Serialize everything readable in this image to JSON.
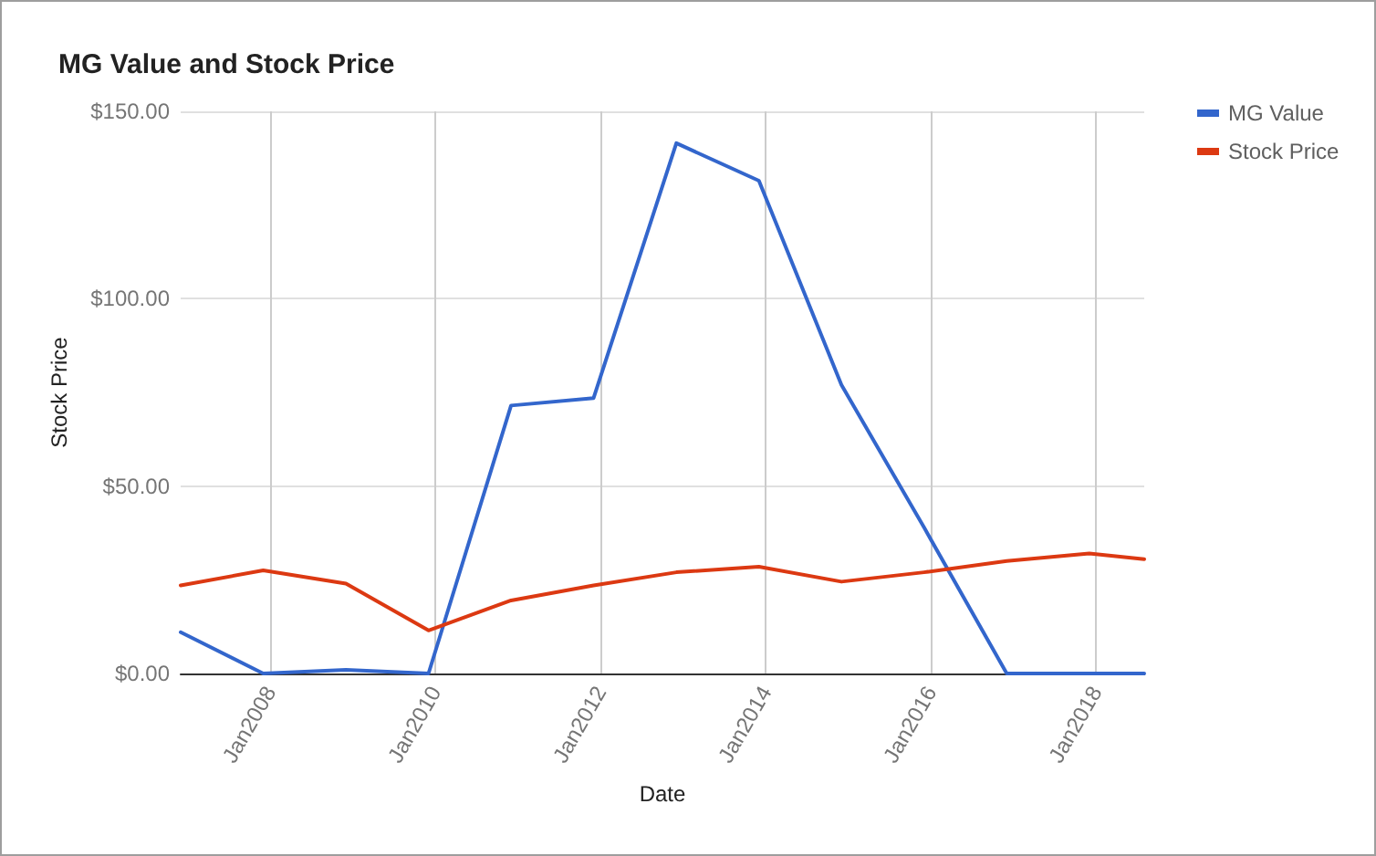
{
  "chart_data": {
    "type": "line",
    "title": "MG Value and Stock Price",
    "xlabel": "Date",
    "ylabel": "Stock Price",
    "x": [
      "2006-12",
      "2007-12",
      "2008-12",
      "2009-12",
      "2010-12",
      "2011-12",
      "2012-12",
      "2013-12",
      "2014-12",
      "2015-12",
      "2016-12",
      "2017-12",
      "2018-08"
    ],
    "series": [
      {
        "name": "MG Value",
        "color": "#3366cc",
        "values": [
          11,
          0,
          1,
          0,
          71.5,
          73.5,
          141.5,
          131.5,
          77,
          39,
          0,
          0,
          0
        ]
      },
      {
        "name": "Stock Price",
        "color": "#dc3912",
        "values": [
          23.5,
          27.5,
          24,
          11.5,
          19.5,
          23.5,
          27,
          28.5,
          24.5,
          27,
          30,
          32,
          30.5
        ]
      }
    ],
    "xlim": [
      "2006-12",
      "2018-08"
    ],
    "xticks": [
      {
        "value": "2008-01",
        "label": "Jan2008"
      },
      {
        "value": "2010-01",
        "label": "Jan2010"
      },
      {
        "value": "2012-01",
        "label": "Jan2012"
      },
      {
        "value": "2014-01",
        "label": "Jan2014"
      },
      {
        "value": "2016-01",
        "label": "Jan2016"
      },
      {
        "value": "2018-01",
        "label": "Jan2018"
      }
    ],
    "ylim": [
      0,
      150
    ],
    "yticks": [
      {
        "value": 0,
        "label": "$0.00"
      },
      {
        "value": 50,
        "label": "$50.00"
      },
      {
        "value": 100,
        "label": "$100.00"
      },
      {
        "value": 150,
        "label": "$150.00"
      }
    ],
    "grid": true,
    "legend": "top right",
    "marker": "none",
    "line_style": "solid"
  }
}
